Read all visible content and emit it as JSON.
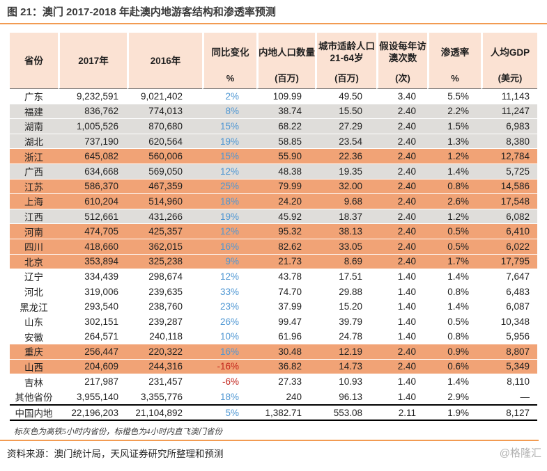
{
  "title": "图 21：澳门 2017-2018 年赴澳内地游客结构和渗透率预测",
  "note": "标灰色为高铁5小时内省份，标橙色为4小时内直飞澳门省份",
  "source": "资料来源：澳门统计局，天风证券研究所整理和预测",
  "watermark": "@格隆汇",
  "colors": {
    "accent_orange_line": "#f29b52",
    "header_bg": "#fbe2d3",
    "row_orange": "#f1a376",
    "row_gray": "#dfddda",
    "yoy_blue": "#4f97d3",
    "yoy_red": "#c3251c",
    "text_dark": "#1f1f1f",
    "watermark_gray": "#b3b3b3"
  },
  "chart_data": {
    "type": "table",
    "title": "澳门 2017-2018 年赴澳内地游客结构和渗透率预测",
    "highlight_legend": {
      "gray": "高铁5小时内省份",
      "orange": "4小时内直飞澳门省份"
    },
    "columns": [
      {
        "title": "省份",
        "unit": ""
      },
      {
        "title": "2017年",
        "unit": ""
      },
      {
        "title": "2016年",
        "unit": ""
      },
      {
        "title": "同比变化",
        "unit": "%"
      },
      {
        "title": "内地人口数量",
        "unit": "(百万)"
      },
      {
        "title": "城市适龄人口\n21-64岁",
        "unit": "(百万)"
      },
      {
        "title": "假设每年访\n澳次数",
        "unit": "(次)"
      },
      {
        "title": "渗透率",
        "unit": "%"
      },
      {
        "title": "人均GDP",
        "unit": "(美元)"
      }
    ],
    "rows": [
      {
        "province": "广东",
        "y2017": "9,232,591",
        "y2016": "9,021,402",
        "yoy": "2%",
        "population": "109.99",
        "urban_pop": "49.50",
        "visits": "3.40",
        "penetration": "5.5%",
        "gdp_usd": "11,143",
        "highlight": "white",
        "total": false
      },
      {
        "province": "福建",
        "y2017": "836,762",
        "y2016": "774,013",
        "yoy": "8%",
        "population": "38.74",
        "urban_pop": "15.50",
        "visits": "2.40",
        "penetration": "2.2%",
        "gdp_usd": "11,247",
        "highlight": "gray",
        "total": false
      },
      {
        "province": "湖南",
        "y2017": "1,005,526",
        "y2016": "870,680",
        "yoy": "15%",
        "population": "68.22",
        "urban_pop": "27.29",
        "visits": "2.40",
        "penetration": "1.5%",
        "gdp_usd": "6,983",
        "highlight": "gray",
        "total": false
      },
      {
        "province": "湖北",
        "y2017": "737,190",
        "y2016": "620,564",
        "yoy": "19%",
        "population": "58.85",
        "urban_pop": "23.54",
        "visits": "2.40",
        "penetration": "1.3%",
        "gdp_usd": "8,380",
        "highlight": "gray",
        "total": false
      },
      {
        "province": "浙江",
        "y2017": "645,082",
        "y2016": "560,006",
        "yoy": "15%",
        "population": "55.90",
        "urban_pop": "22.36",
        "visits": "2.40",
        "penetration": "1.2%",
        "gdp_usd": "12,784",
        "highlight": "orange",
        "total": false
      },
      {
        "province": "广西",
        "y2017": "634,668",
        "y2016": "569,050",
        "yoy": "12%",
        "population": "48.38",
        "urban_pop": "19.35",
        "visits": "2.40",
        "penetration": "1.4%",
        "gdp_usd": "5,725",
        "highlight": "gray",
        "total": false
      },
      {
        "province": "江苏",
        "y2017": "586,370",
        "y2016": "467,359",
        "yoy": "25%",
        "population": "79.99",
        "urban_pop": "32.00",
        "visits": "2.40",
        "penetration": "0.8%",
        "gdp_usd": "14,586",
        "highlight": "orange",
        "total": false
      },
      {
        "province": "上海",
        "y2017": "610,204",
        "y2016": "514,960",
        "yoy": "18%",
        "population": "24.20",
        "urban_pop": "9.68",
        "visits": "2.40",
        "penetration": "2.6%",
        "gdp_usd": "17,548",
        "highlight": "orange",
        "total": false
      },
      {
        "province": "江西",
        "y2017": "512,661",
        "y2016": "431,266",
        "yoy": "19%",
        "population": "45.92",
        "urban_pop": "18.37",
        "visits": "2.40",
        "penetration": "1.2%",
        "gdp_usd": "6,082",
        "highlight": "gray",
        "total": false
      },
      {
        "province": "河南",
        "y2017": "474,705",
        "y2016": "425,357",
        "yoy": "12%",
        "population": "95.32",
        "urban_pop": "38.13",
        "visits": "2.40",
        "penetration": "0.5%",
        "gdp_usd": "6,410",
        "highlight": "orange",
        "total": false
      },
      {
        "province": "四川",
        "y2017": "418,660",
        "y2016": "362,015",
        "yoy": "16%",
        "population": "82.62",
        "urban_pop": "33.05",
        "visits": "2.40",
        "penetration": "0.5%",
        "gdp_usd": "6,022",
        "highlight": "orange",
        "total": false
      },
      {
        "province": "北京",
        "y2017": "353,894",
        "y2016": "325,238",
        "yoy": "9%",
        "population": "21.73",
        "urban_pop": "8.69",
        "visits": "2.40",
        "penetration": "1.7%",
        "gdp_usd": "17,795",
        "highlight": "orange",
        "total": false
      },
      {
        "province": "辽宁",
        "y2017": "334,439",
        "y2016": "298,674",
        "yoy": "12%",
        "population": "43.78",
        "urban_pop": "17.51",
        "visits": "1.40",
        "penetration": "1.4%",
        "gdp_usd": "7,647",
        "highlight": "white",
        "total": false
      },
      {
        "province": "河北",
        "y2017": "319,006",
        "y2016": "239,635",
        "yoy": "33%",
        "population": "74.70",
        "urban_pop": "29.88",
        "visits": "1.40",
        "penetration": "0.8%",
        "gdp_usd": "6,483",
        "highlight": "white",
        "total": false
      },
      {
        "province": "黑龙江",
        "y2017": "293,540",
        "y2016": "238,760",
        "yoy": "23%",
        "population": "37.99",
        "urban_pop": "15.20",
        "visits": "1.40",
        "penetration": "1.4%",
        "gdp_usd": "6,087",
        "highlight": "white",
        "total": false
      },
      {
        "province": "山东",
        "y2017": "302,151",
        "y2016": "239,287",
        "yoy": "26%",
        "population": "99.47",
        "urban_pop": "39.79",
        "visits": "1.40",
        "penetration": "0.5%",
        "gdp_usd": "10,348",
        "highlight": "white",
        "total": false
      },
      {
        "province": "安徽",
        "y2017": "264,571",
        "y2016": "240,118",
        "yoy": "10%",
        "population": "61.96",
        "urban_pop": "24.78",
        "visits": "1.40",
        "penetration": "0.8%",
        "gdp_usd": "5,956",
        "highlight": "white",
        "total": false
      },
      {
        "province": "重庆",
        "y2017": "256,447",
        "y2016": "220,322",
        "yoy": "16%",
        "population": "30.48",
        "urban_pop": "12.19",
        "visits": "2.40",
        "penetration": "0.9%",
        "gdp_usd": "8,807",
        "highlight": "orange",
        "total": false
      },
      {
        "province": "山西",
        "y2017": "204,609",
        "y2016": "244,316",
        "yoy": "-16%",
        "population": "36.82",
        "urban_pop": "14.73",
        "visits": "2.40",
        "penetration": "0.6%",
        "gdp_usd": "5,349",
        "highlight": "orange",
        "total": false
      },
      {
        "province": "吉林",
        "y2017": "217,987",
        "y2016": "231,457",
        "yoy": "-6%",
        "population": "27.33",
        "urban_pop": "10.93",
        "visits": "1.40",
        "penetration": "1.4%",
        "gdp_usd": "8,110",
        "highlight": "white",
        "total": false
      },
      {
        "province": "其他省份",
        "y2017": "3,955,140",
        "y2016": "3,355,776",
        "yoy": "18%",
        "population": "240",
        "urban_pop": "96.13",
        "visits": "1.40",
        "penetration": "2.9%",
        "gdp_usd": "—",
        "highlight": "white",
        "total": false
      },
      {
        "province": "中国内地",
        "y2017": "22,196,203",
        "y2016": "21,104,892",
        "yoy": "5%",
        "population": "1,382.71",
        "urban_pop": "553.08",
        "visits": "2.11",
        "penetration": "1.9%",
        "gdp_usd": "8,127",
        "highlight": "white",
        "total": true
      }
    ]
  }
}
